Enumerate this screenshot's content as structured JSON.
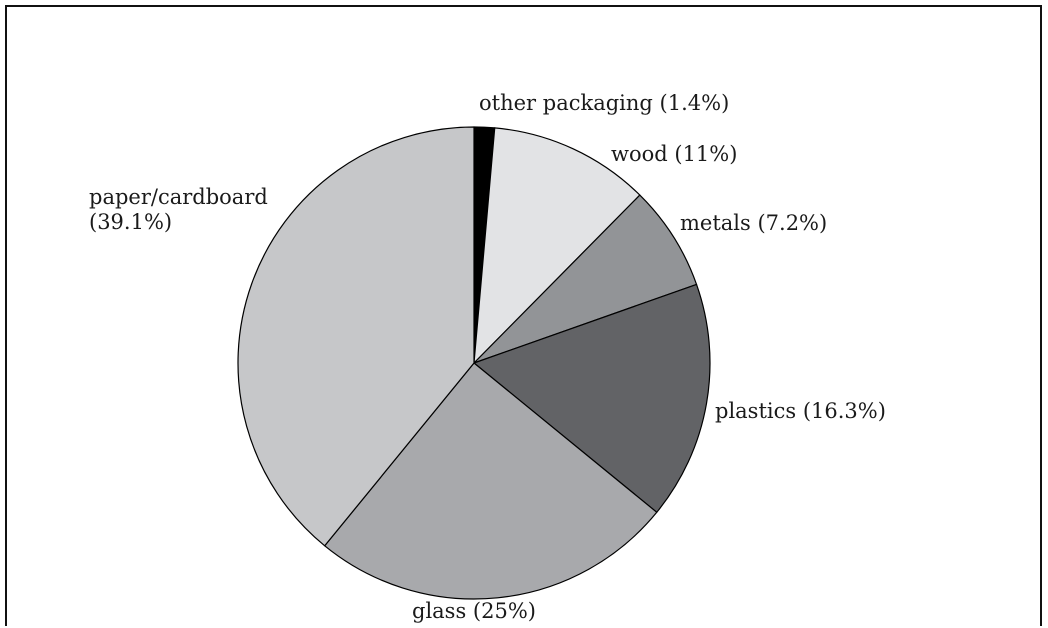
{
  "chart_data": {
    "type": "pie",
    "title": "",
    "start_angle_deg": 0,
    "direction": "clockwise",
    "slices": [
      {
        "label_lines": [
          "other packaging (1.4%)"
        ],
        "value": 1.4,
        "color": "#000000"
      },
      {
        "label_lines": [
          "wood (11%)"
        ],
        "value": 11,
        "color": "#e2e3e5"
      },
      {
        "label_lines": [
          "metals (7.2%)"
        ],
        "value": 7.2,
        "color": "#929497"
      },
      {
        "label_lines": [
          "plastics (16.3%)"
        ],
        "value": 16.3,
        "color": "#626366"
      },
      {
        "label_lines": [
          "glass (25%)"
        ],
        "value": 25,
        "color": "#a8a9ac"
      },
      {
        "label_lines": [
          "paper/cardboard",
          "(39.1%)"
        ],
        "value": 39.1,
        "color": "#c6c7c9"
      }
    ]
  }
}
